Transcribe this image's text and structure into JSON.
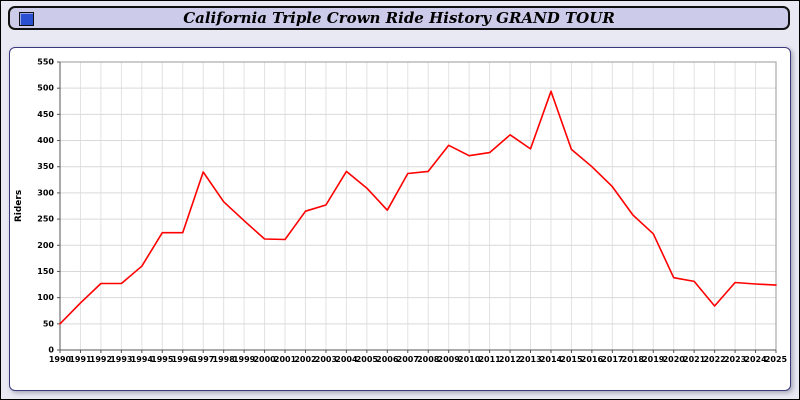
{
  "header": {
    "title": "California Triple Crown Ride History GRAND TOUR",
    "background": "#ccccea",
    "icon": "blue-square-icon"
  },
  "chart_data": {
    "type": "line",
    "title": "California Triple Crown Ride History GRAND TOUR",
    "xlabel": "",
    "ylabel": "Riders",
    "ylim": [
      0,
      550
    ],
    "ytick_step": 50,
    "grid": true,
    "legend": "none",
    "line_color": "#ff0000",
    "categories": [
      1990,
      1991,
      1992,
      1993,
      1994,
      1995,
      1996,
      1997,
      1998,
      1999,
      2000,
      2001,
      2002,
      2003,
      2004,
      2005,
      2006,
      2007,
      2008,
      2009,
      2010,
      2011,
      2012,
      2013,
      2014,
      2015,
      2016,
      2017,
      2018,
      2019,
      2020,
      2021,
      2022,
      2023,
      2024,
      2025
    ],
    "values": [
      50,
      90,
      127,
      127,
      160,
      224,
      224,
      340,
      283,
      247,
      212,
      211,
      265,
      277,
      341,
      309,
      267,
      337,
      341,
      391,
      371,
      377,
      411,
      384,
      494,
      383,
      350,
      312,
      258,
      222,
      138,
      131,
      84,
      129,
      126,
      124
    ]
  }
}
